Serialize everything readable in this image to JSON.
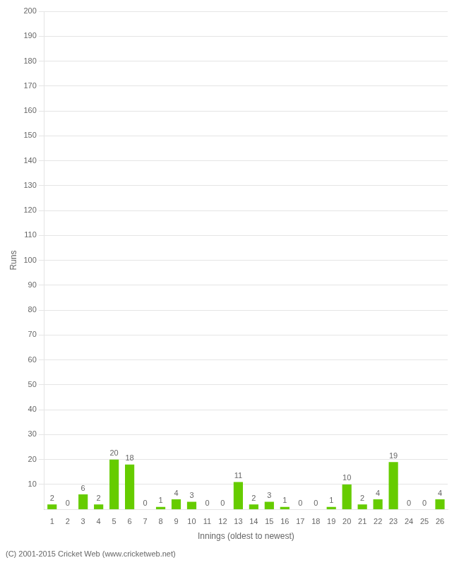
{
  "chart_data": {
    "type": "bar",
    "xlabel": "Innings (oldest to newest)",
    "ylabel": "Runs",
    "annotations": [
      "(C) 2001-2015 Cricket Web (www.cricketweb.net)"
    ],
    "categories": [
      "1",
      "2",
      "3",
      "4",
      "5",
      "6",
      "7",
      "8",
      "9",
      "10",
      "11",
      "12",
      "13",
      "14",
      "15",
      "16",
      "17",
      "18",
      "19",
      "20",
      "21",
      "22",
      "23",
      "24",
      "25",
      "26"
    ],
    "values": [
      2,
      0,
      6,
      2,
      20,
      18,
      0,
      1,
      4,
      3,
      0,
      0,
      11,
      2,
      3,
      1,
      0,
      0,
      1,
      10,
      2,
      4,
      19,
      0,
      0,
      4
    ],
    "color": "#66cc00",
    "ylim": [
      0,
      200
    ],
    "yticks": [
      10,
      20,
      30,
      40,
      50,
      60,
      70,
      80,
      90,
      100,
      110,
      120,
      130,
      140,
      150,
      160,
      170,
      180,
      190,
      200
    ],
    "grid": true,
    "data_labels": true
  }
}
